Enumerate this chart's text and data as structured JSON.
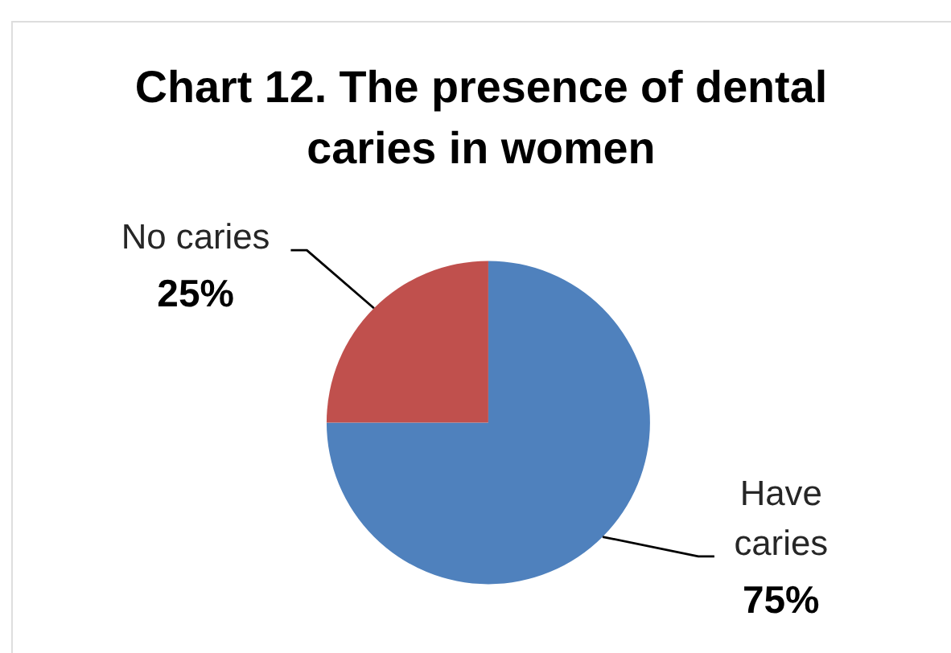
{
  "chart_data": {
    "type": "pie",
    "title": "Chart 12. The presence of dental caries in women",
    "categories": [
      "Have caries",
      "No caries"
    ],
    "values": [
      75,
      25
    ],
    "colors": [
      "#4f81bd",
      "#c0504d"
    ],
    "value_labels": [
      "75%",
      "25%"
    ]
  }
}
